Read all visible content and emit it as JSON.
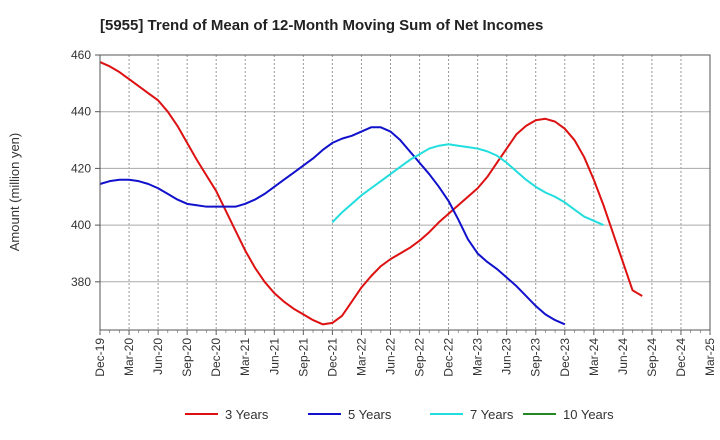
{
  "chart_data": {
    "type": "line",
    "title": "[5955]  Trend of Mean of 12-Month Moving Sum of Net Incomes",
    "ylabel": "Amount (million yen)",
    "xlabel": "",
    "ylim": [
      363,
      460
    ],
    "yticks": [
      380,
      400,
      420,
      440,
      460
    ],
    "x_tick_labels": [
      "Dec-19",
      "Mar-20",
      "Jun-20",
      "Sep-20",
      "Dec-20",
      "Mar-21",
      "Jun-21",
      "Sep-21",
      "Dec-21",
      "Mar-22",
      "Jun-22",
      "Sep-22",
      "Dec-22",
      "Mar-23",
      "Jun-23",
      "Sep-23",
      "Dec-23",
      "Mar-24",
      "Jun-24",
      "Sep-24",
      "Dec-24",
      "Mar-25"
    ],
    "x_range": [
      "Dec-19",
      "Mar-25"
    ],
    "grid": "dashed vertical lines at each quarter tick; solid horizontal lines at y ticks",
    "legend_placement": "bottom",
    "series": [
      {
        "name": "3 Years",
        "color": "#dd1111",
        "points": [
          [
            "Dec-19",
            457.5
          ],
          [
            "Jan-20",
            456
          ],
          [
            "Feb-20",
            454
          ],
          [
            "Mar-20",
            451.5
          ],
          [
            "Apr-20",
            449
          ],
          [
            "May-20",
            446.5
          ],
          [
            "Jun-20",
            444
          ],
          [
            "Jul-20",
            440
          ],
          [
            "Aug-20",
            435
          ],
          [
            "Sep-20",
            429
          ],
          [
            "Oct-20",
            423
          ],
          [
            "Nov-20",
            417.5
          ],
          [
            "Dec-20",
            412
          ],
          [
            "Jan-21",
            405
          ],
          [
            "Feb-21",
            398
          ],
          [
            "Mar-21",
            391
          ],
          [
            "Apr-21",
            385
          ],
          [
            "May-21",
            380
          ],
          [
            "Jun-21",
            376
          ],
          [
            "Jul-21",
            373
          ],
          [
            "Aug-21",
            370.5
          ],
          [
            "Sep-21",
            368.5
          ],
          [
            "Oct-21",
            366.5
          ],
          [
            "Nov-21",
            365
          ],
          [
            "Dec-21",
            365.5
          ],
          [
            "Jan-22",
            368
          ],
          [
            "Feb-22",
            373
          ],
          [
            "Mar-22",
            378
          ],
          [
            "Apr-22",
            382
          ],
          [
            "May-22",
            385.5
          ],
          [
            "Jun-22",
            388
          ],
          [
            "Jul-22",
            390
          ],
          [
            "Aug-22",
            392
          ],
          [
            "Sep-22",
            394.5
          ],
          [
            "Oct-22",
            397.5
          ],
          [
            "Nov-22",
            401
          ],
          [
            "Dec-22",
            404
          ],
          [
            "Jan-23",
            407
          ],
          [
            "Feb-23",
            410
          ],
          [
            "Mar-23",
            413
          ],
          [
            "Apr-23",
            417
          ],
          [
            "May-23",
            422
          ],
          [
            "Jun-23",
            427
          ],
          [
            "Jul-23",
            432
          ],
          [
            "Aug-23",
            435
          ],
          [
            "Sep-23",
            437
          ],
          [
            "Oct-23",
            437.5
          ],
          [
            "Nov-23",
            436.5
          ],
          [
            "Dec-23",
            434
          ],
          [
            "Jan-24",
            430
          ],
          [
            "Feb-24",
            424
          ],
          [
            "Mar-24",
            416
          ],
          [
            "Apr-24",
            407
          ],
          [
            "May-24",
            397
          ],
          [
            "Jun-24",
            387
          ],
          [
            "Jul-24",
            377
          ],
          [
            "Aug-24",
            375
          ]
        ]
      },
      {
        "name": "5 Years",
        "color": "#1111cc",
        "points": [
          [
            "Dec-19",
            414.5
          ],
          [
            "Jan-20",
            415.5
          ],
          [
            "Feb-20",
            416
          ],
          [
            "Mar-20",
            416
          ],
          [
            "Apr-20",
            415.5
          ],
          [
            "May-20",
            414.5
          ],
          [
            "Jun-20",
            413
          ],
          [
            "Jul-20",
            411
          ],
          [
            "Aug-20",
            409
          ],
          [
            "Sep-20",
            407.5
          ],
          [
            "Oct-20",
            407
          ],
          [
            "Nov-20",
            406.5
          ],
          [
            "Dec-20",
            406.5
          ],
          [
            "Jan-21",
            406.5
          ],
          [
            "Feb-21",
            406.5
          ],
          [
            "Mar-21",
            407.5
          ],
          [
            "Apr-21",
            409
          ],
          [
            "May-21",
            411
          ],
          [
            "Jun-21",
            413.5
          ],
          [
            "Jul-21",
            416
          ],
          [
            "Aug-21",
            418.5
          ],
          [
            "Sep-21",
            421
          ],
          [
            "Oct-21",
            423.5
          ],
          [
            "Nov-21",
            426.5
          ],
          [
            "Dec-21",
            429
          ],
          [
            "Jan-22",
            430.5
          ],
          [
            "Feb-22",
            431.5
          ],
          [
            "Mar-22",
            433
          ],
          [
            "Apr-22",
            434.5
          ],
          [
            "May-22",
            434.5
          ],
          [
            "Jun-22",
            433
          ],
          [
            "Jul-22",
            430
          ],
          [
            "Aug-22",
            426
          ],
          [
            "Sep-22",
            422
          ],
          [
            "Oct-22",
            418
          ],
          [
            "Nov-22",
            413.5
          ],
          [
            "Dec-22",
            408.5
          ],
          [
            "Jan-23",
            402
          ],
          [
            "Feb-23",
            395
          ],
          [
            "Mar-23",
            390
          ],
          [
            "Apr-23",
            387
          ],
          [
            "May-23",
            384.5
          ],
          [
            "Jun-23",
            381.5
          ],
          [
            "Jul-23",
            378.5
          ],
          [
            "Aug-23",
            375
          ],
          [
            "Sep-23",
            371.5
          ],
          [
            "Oct-23",
            368.5
          ],
          [
            "Nov-23",
            366.5
          ],
          [
            "Dec-23",
            365
          ]
        ]
      },
      {
        "name": "7 Years",
        "color": "#22dddd",
        "points": [
          [
            "Dec-21",
            401
          ],
          [
            "Jan-22",
            404.5
          ],
          [
            "Feb-22",
            407.5
          ],
          [
            "Mar-22",
            410.5
          ],
          [
            "Apr-22",
            413
          ],
          [
            "May-22",
            415.5
          ],
          [
            "Jun-22",
            418
          ],
          [
            "Jul-22",
            420.5
          ],
          [
            "Aug-22",
            423
          ],
          [
            "Sep-22",
            425
          ],
          [
            "Oct-22",
            427
          ],
          [
            "Nov-22",
            428
          ],
          [
            "Dec-22",
            428.5
          ],
          [
            "Jan-23",
            428
          ],
          [
            "Feb-23",
            427.5
          ],
          [
            "Mar-23",
            427
          ],
          [
            "Apr-23",
            426
          ],
          [
            "May-23",
            424.5
          ],
          [
            "Jun-23",
            422
          ],
          [
            "Jul-23",
            419
          ],
          [
            "Aug-23",
            416
          ],
          [
            "Sep-23",
            413.5
          ],
          [
            "Oct-23",
            411.5
          ],
          [
            "Nov-23",
            410
          ],
          [
            "Dec-23",
            408
          ],
          [
            "Jan-24",
            405.5
          ],
          [
            "Feb-24",
            403
          ],
          [
            "Mar-24",
            401.5
          ],
          [
            "Apr-24",
            400
          ]
        ]
      },
      {
        "name": "10 Years",
        "color": "#228822",
        "points": []
      }
    ]
  }
}
